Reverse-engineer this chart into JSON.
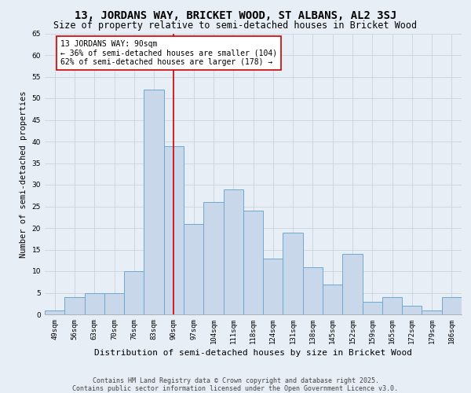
{
  "title": "13, JORDANS WAY, BRICKET WOOD, ST ALBANS, AL2 3SJ",
  "subtitle": "Size of property relative to semi-detached houses in Bricket Wood",
  "xlabel": "Distribution of semi-detached houses by size in Bricket Wood",
  "ylabel": "Number of semi-detached properties",
  "categories": [
    "49sqm",
    "56sqm",
    "63sqm",
    "70sqm",
    "76sqm",
    "83sqm",
    "90sqm",
    "97sqm",
    "104sqm",
    "111sqm",
    "118sqm",
    "124sqm",
    "131sqm",
    "138sqm",
    "145sqm",
    "152sqm",
    "159sqm",
    "165sqm",
    "172sqm",
    "179sqm",
    "186sqm"
  ],
  "values": [
    1,
    4,
    5,
    5,
    10,
    52,
    39,
    21,
    26,
    29,
    24,
    13,
    19,
    11,
    7,
    14,
    3,
    4,
    2,
    1,
    4
  ],
  "bar_facecolor": "#c8d8ea",
  "bar_edgecolor": "#6fa8d0",
  "highlight_index": 6,
  "highlight_line_color": "#cc0000",
  "annotation_text": "13 JORDANS WAY: 90sqm\n← 36% of semi-detached houses are smaller (104)\n62% of semi-detached houses are larger (178) →",
  "annotation_box_edgecolor": "#cc0000",
  "annotation_box_facecolor": "#ffffff",
  "grid_color": "#c8d4e0",
  "background_color": "#e8eef5",
  "fig_background_color": "#e8eef5",
  "ylim": [
    0,
    65
  ],
  "yticks": [
    0,
    5,
    10,
    15,
    20,
    25,
    30,
    35,
    40,
    45,
    50,
    55,
    60,
    65
  ],
  "footnote": "Contains HM Land Registry data © Crown copyright and database right 2025.\nContains public sector information licensed under the Open Government Licence v3.0.",
  "title_fontsize": 10,
  "subtitle_fontsize": 8.5,
  "xlabel_fontsize": 8,
  "ylabel_fontsize": 7.5,
  "tick_fontsize": 6.5,
  "annotation_fontsize": 7,
  "footnote_fontsize": 6
}
